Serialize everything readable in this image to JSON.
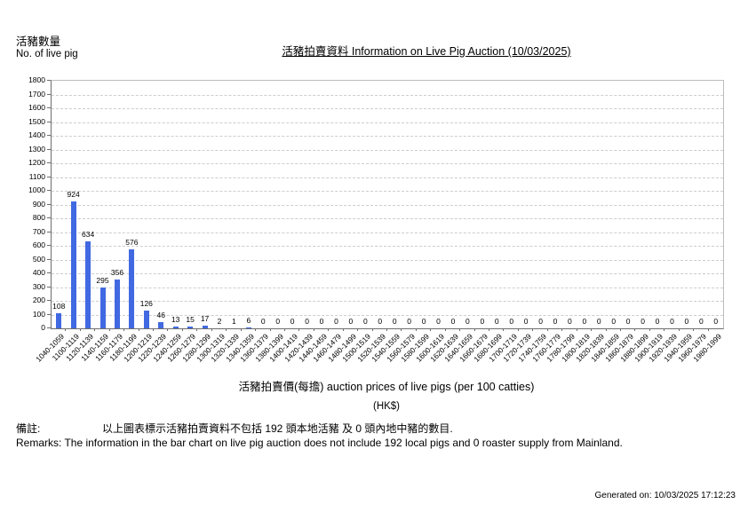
{
  "header": {
    "y_axis_title_zh": "活豬數量",
    "y_axis_title_en": "No. of live pig",
    "title": "活豬拍賣資料 Information on Live Pig Auction (10/03/2025)"
  },
  "chart_data": {
    "type": "bar",
    "title": "活豬拍賣資料 Information on Live Pig Auction (10/03/2025)",
    "xlabel": "活豬拍賣價(每擔) auction prices of live pigs (per 100 catties)",
    "xlabel_unit": "(HK$)",
    "ylabel": "活豬數量 No. of live pig",
    "ylim": [
      0,
      1800
    ],
    "ytick_step": 100,
    "grid": "horizontal-dashed",
    "legend": "none",
    "bar_color": "#4169E1",
    "categories": [
      "1040-1059",
      "1100-1119",
      "1120-1139",
      "1140-1159",
      "1160-1179",
      "1180-1199",
      "1200-1219",
      "1220-1239",
      "1240-1259",
      "1260-1279",
      "1280-1299",
      "1300-1319",
      "1320-1339",
      "1340-1359",
      "1360-1379",
      "1380-1399",
      "1400-1419",
      "1420-1439",
      "1440-1459",
      "1460-1479",
      "1480-1499",
      "1500-1519",
      "1520-1539",
      "1540-1559",
      "1560-1579",
      "1580-1599",
      "1600-1619",
      "1620-1639",
      "1640-1659",
      "1660-1679",
      "1680-1699",
      "1700-1719",
      "1720-1739",
      "1740-1759",
      "1760-1779",
      "1780-1799",
      "1800-1819",
      "1820-1839",
      "1840-1859",
      "1860-1879",
      "1880-1899",
      "1900-1919",
      "1920-1939",
      "1940-1959",
      "1960-1979",
      "1980-1999"
    ],
    "values": [
      108,
      924,
      634,
      295,
      356,
      576,
      126,
      46,
      13,
      15,
      17,
      2,
      1,
      6,
      0,
      0,
      0,
      0,
      0,
      0,
      0,
      0,
      0,
      0,
      0,
      0,
      0,
      0,
      0,
      0,
      0,
      0,
      0,
      0,
      0,
      0,
      0,
      0,
      0,
      0,
      0,
      0,
      0,
      0,
      0,
      0
    ]
  },
  "axis_titles": {
    "x_title": "活豬拍賣價(每擔) auction prices of live pigs (per 100 catties)",
    "x_unit": "(HK$)"
  },
  "remarks": {
    "label_zh": "備註:",
    "text_zh": "以上圖表標示活豬拍賣資料不包括 192 頭本地活豬 及 0 頭內地中豬的數目.",
    "text_en": "Remarks: The information in the bar chart on live pig auction does not include 192 local pigs and 0 roaster supply from Mainland."
  },
  "footer": {
    "generated_on": "Generated on: 10/03/2025 17:12:23"
  }
}
